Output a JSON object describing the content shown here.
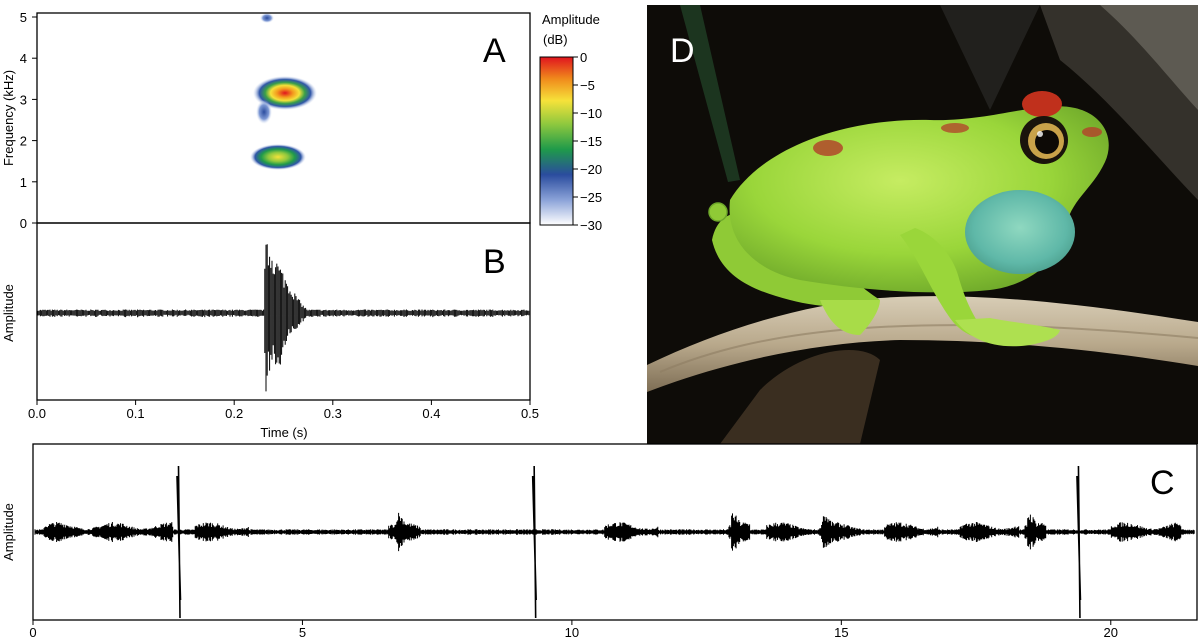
{
  "figure": {
    "panels": {
      "A": {
        "letter": "A",
        "ylabel": "Frequency (kHz)",
        "y_ticks": [
          "0",
          "1",
          "2",
          "3",
          "4",
          "5"
        ],
        "colorbar_title_line1": "Amplitude",
        "colorbar_title_line2": "(dB)",
        "colorbar_ticks": [
          "0",
          "−5",
          "−10",
          "−15",
          "−20",
          "−25",
          "−30"
        ]
      },
      "B": {
        "letter": "B",
        "ylabel": "Amplitude",
        "xlabel": "Time (s)",
        "x_ticks": [
          "0.0",
          "0.1",
          "0.2",
          "0.3",
          "0.4",
          "0.5"
        ]
      },
      "C": {
        "letter": "C",
        "ylabel": "Amplitude",
        "x_ticks": [
          "0",
          "5",
          "10",
          "15",
          "20"
        ]
      },
      "D": {
        "letter": "D"
      }
    },
    "colors": {
      "frog_body": "#9ad63a",
      "frog_throat": "#5fb8a8",
      "eye_red": "#c0301c",
      "photo_bg": "#0e0c08",
      "waveform": "#000000"
    }
  },
  "chart_data": [
    {
      "type": "heatmap",
      "panel": "A",
      "title": "",
      "xlabel": "",
      "ylabel": "Frequency (kHz)",
      "xlim": [
        0.0,
        0.5
      ],
      "ylim": [
        0,
        5
      ],
      "colorbar": {
        "label": "Amplitude (dB)",
        "range": [
          -30,
          0
        ]
      },
      "blobs": [
        {
          "time_start": 0.22,
          "time_end": 0.28,
          "freq_khz": 3.1,
          "peak_db": 0
        },
        {
          "time_start": 0.225,
          "time_end": 0.27,
          "freq_khz": 1.6,
          "peak_db": -10
        },
        {
          "time_start": 0.225,
          "time_end": 0.24,
          "freq_khz": 4.8,
          "peak_db": -22
        }
      ]
    },
    {
      "type": "line",
      "panel": "B",
      "title": "",
      "xlabel": "Time (s)",
      "ylabel": "Amplitude",
      "xlim": [
        0.0,
        0.5
      ],
      "baseline_level": 0.05,
      "call": {
        "onset_s": 0.23,
        "peak_s": 0.235,
        "end_s": 0.275,
        "peak_level": 1.0
      }
    },
    {
      "type": "line",
      "panel": "C",
      "title": "",
      "xlabel": "",
      "ylabel": "Amplitude",
      "xlim": [
        0,
        21.6
      ],
      "baseline_level": 0.05,
      "spikes_s": [
        2.7,
        9.3,
        19.4
      ],
      "minor_bursts_s": [
        6.8,
        13.0,
        14.7,
        18.5
      ],
      "noise_segments_s": [
        [
          0.2,
          2.6
        ],
        [
          3.0,
          4.0
        ],
        [
          6.6,
          7.2
        ],
        [
          10.6,
          11.6
        ],
        [
          12.9,
          13.3
        ],
        [
          13.6,
          14.4
        ],
        [
          14.6,
          15.4
        ],
        [
          15.8,
          16.8
        ],
        [
          17.2,
          18.3
        ],
        [
          18.4,
          18.8
        ],
        [
          20.0,
          21.3
        ]
      ]
    }
  ]
}
